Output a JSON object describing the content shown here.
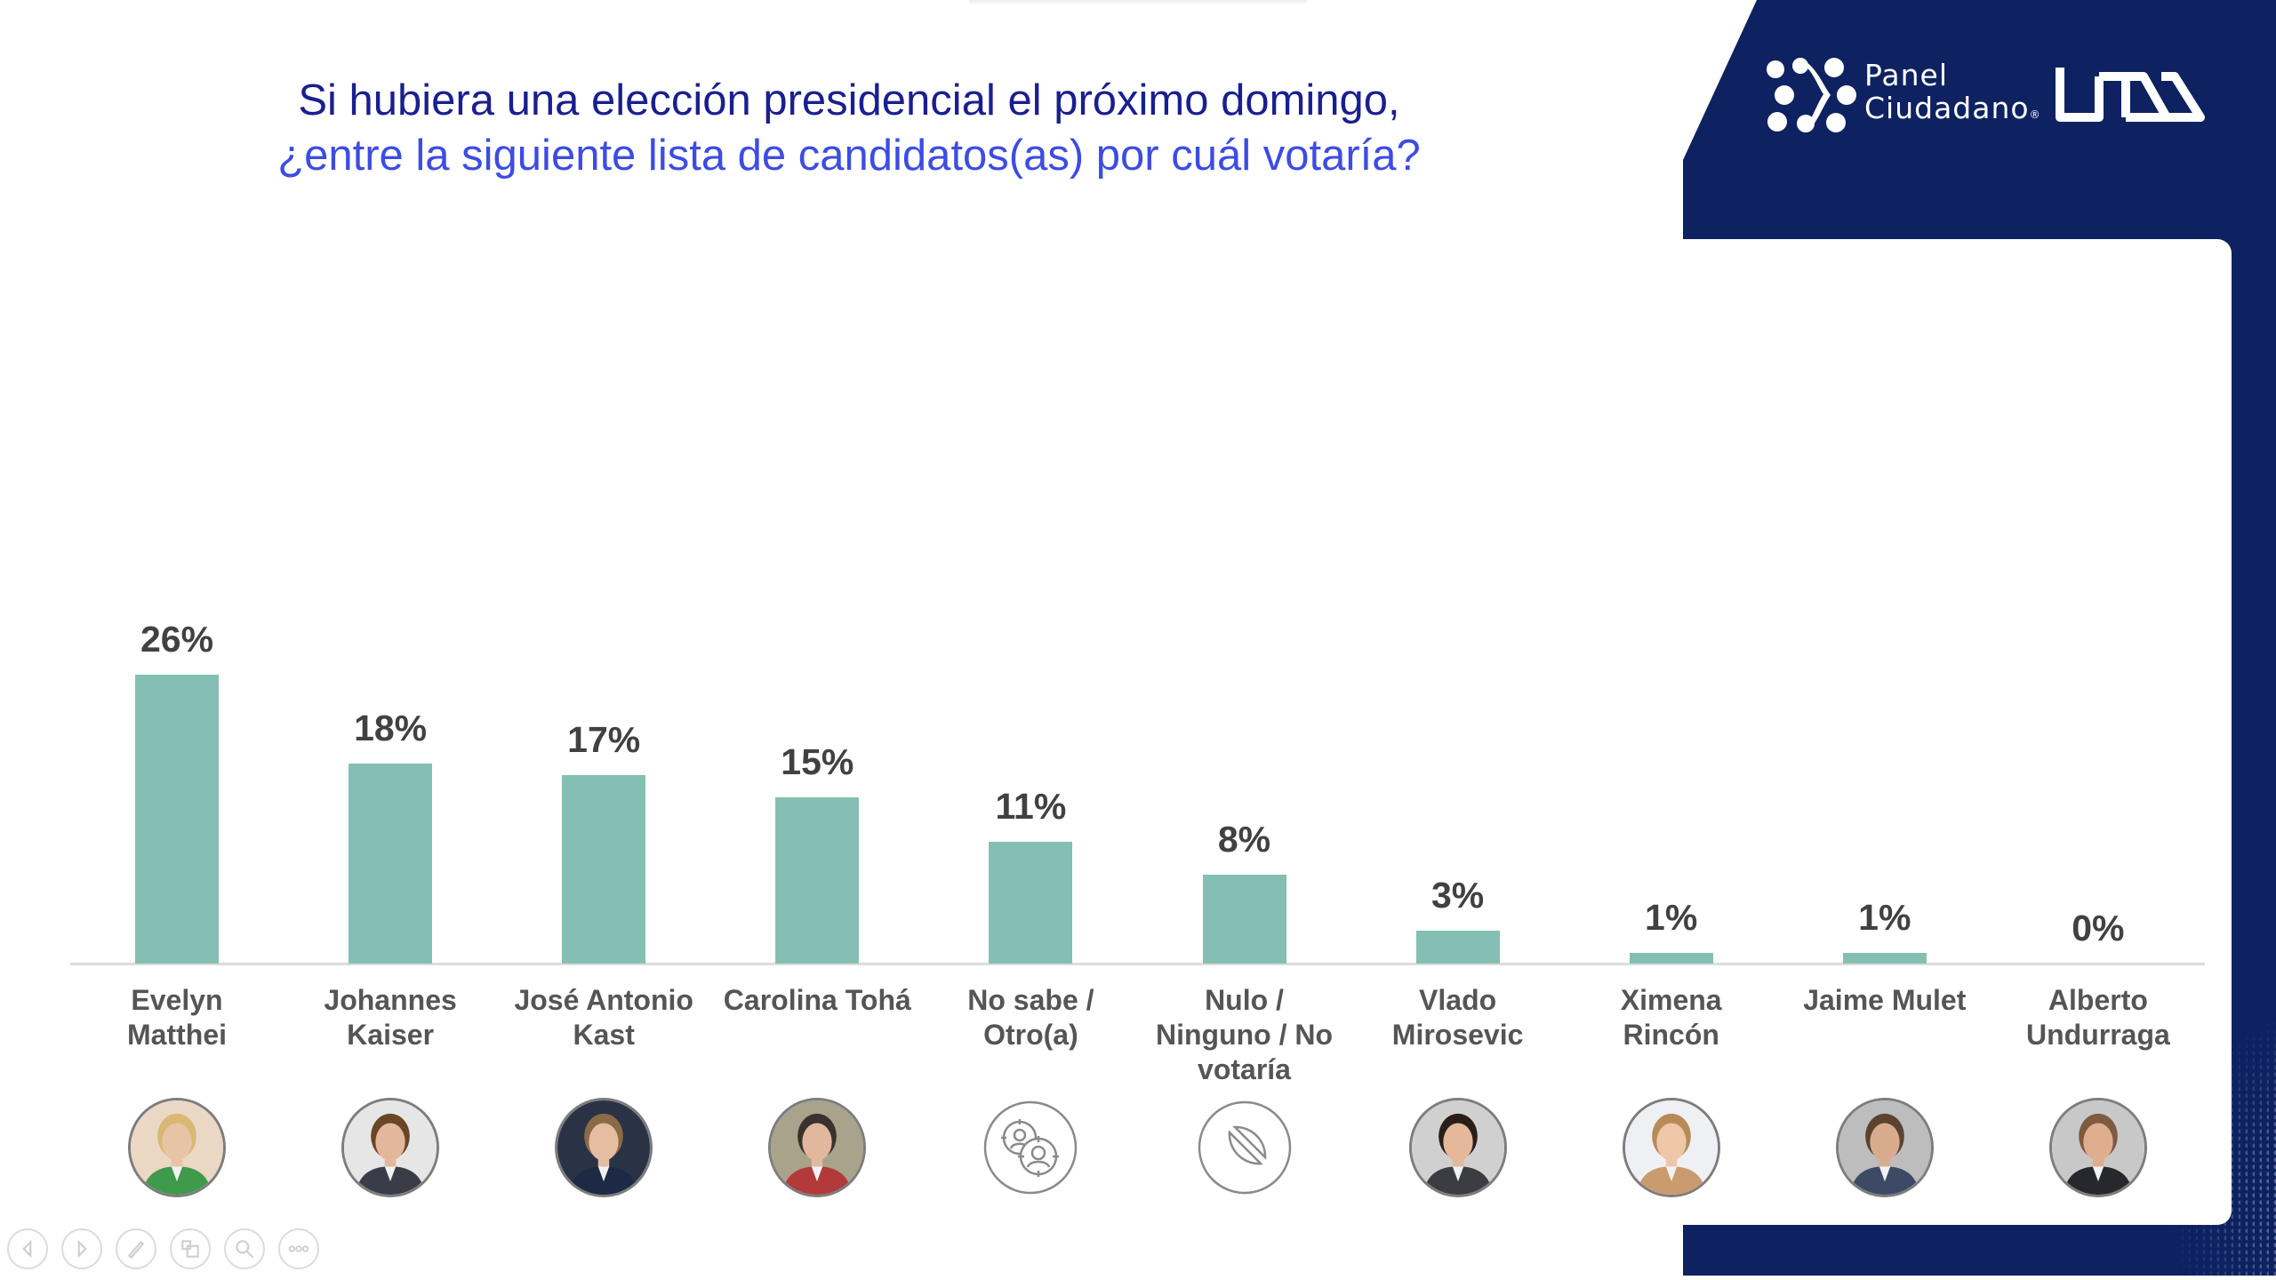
{
  "title": {
    "line1": "Si hubiera una elección presidencial el próximo domingo,",
    "line2": "¿entre la siguiente lista de candidatos(as) por cuál votaría?"
  },
  "brand": {
    "logo_line1": "Panel",
    "logo_line2": "Ciudadano",
    "registered": "®",
    "university_logo": "UDD",
    "navy": "#0e2261"
  },
  "colors": {
    "bar": "#85bfb4",
    "title_primary": "#1a1f8f",
    "title_secondary": "#3d4ce3",
    "value_label": "#414141",
    "category_label": "#555555"
  },
  "chart_data": {
    "type": "bar",
    "title": "Si hubiera una elección presidencial el próximo domingo, ¿entre la siguiente lista de candidatos(as) por cuál votaría?",
    "xlabel": "",
    "ylabel": "",
    "ylim": [
      0,
      26
    ],
    "grid": false,
    "legend": "none",
    "unit": "%",
    "categories": [
      "Evelyn Matthei",
      "Johannes Kaiser",
      "José Antonio Kast",
      "Carolina Tohá",
      "No sabe / Otro(a)",
      "Nulo / Ninguno / No votaría",
      "Vlado Mirosevic",
      "Ximena Rincón",
      "Jaime Mulet",
      "Alberto Undurraga"
    ],
    "values": [
      26,
      18,
      17,
      15,
      11,
      8,
      3,
      1,
      1,
      0
    ],
    "value_labels": [
      "26%",
      "18%",
      "17%",
      "15%",
      "11%",
      "8%",
      "3%",
      "1%",
      "1%",
      "0%"
    ],
    "category_lines": [
      [
        "Evelyn",
        "Matthei"
      ],
      [
        "Johannes",
        "Kaiser"
      ],
      [
        "José Antonio",
        "Kast"
      ],
      [
        "Carolina Tohá"
      ],
      [
        "No sabe /",
        "Otro(a)"
      ],
      [
        "Nulo /",
        "Ninguno / No",
        "votaría"
      ],
      [
        "Vlado",
        "Mirosevic"
      ],
      [
        "Ximena",
        "Rincón"
      ],
      [
        "Jaime Mulet"
      ],
      [
        "Alberto",
        "Undurraga"
      ]
    ],
    "pictograms": [
      {
        "kind": "photo",
        "name": "evelyn-matthei",
        "skin": "#e8c4a6",
        "hair": "#d9b874",
        "bg": "#ead7c4",
        "clothes": "#3f9a4c"
      },
      {
        "kind": "photo",
        "name": "johannes-kaiser",
        "skin": "#e2b79a",
        "hair": "#6b4626",
        "bg": "#e6e6e6",
        "clothes": "#3a3d48"
      },
      {
        "kind": "photo",
        "name": "jose-antonio-kast",
        "skin": "#e6bda0",
        "hair": "#8b6a48",
        "bg": "#2a3346",
        "clothes": "#1d2a45"
      },
      {
        "kind": "photo",
        "name": "carolina-toha",
        "skin": "#e1b89d",
        "hair": "#3b3131",
        "bg": "#a8a38a",
        "clothes": "#b23a3a"
      },
      {
        "kind": "icon",
        "name": "undecided-people-icon"
      },
      {
        "kind": "icon",
        "name": "prohibited-icon"
      },
      {
        "kind": "photo",
        "name": "vlado-mirosevic",
        "skin": "#e4b899",
        "hair": "#2a1e18",
        "bg": "#d0d0d0",
        "clothes": "#3b3d43"
      },
      {
        "kind": "photo",
        "name": "ximena-rincon",
        "skin": "#eec6a8",
        "hair": "#b98a58",
        "bg": "#eef0f4",
        "clothes": "#c99b6e"
      },
      {
        "kind": "photo",
        "name": "jaime-mulet",
        "skin": "#d9ab8e",
        "hair": "#5a4330",
        "bg": "#bdbdbd",
        "clothes": "#3d4a66"
      },
      {
        "kind": "photo",
        "name": "alberto-undurraga",
        "skin": "#dfae8f",
        "hair": "#7d5a40",
        "bg": "#c8c8c8",
        "clothes": "#27282d"
      }
    ]
  },
  "controls": [
    {
      "name": "previous-slide-button",
      "icon": "arrow-left-icon"
    },
    {
      "name": "next-slide-button",
      "icon": "arrow-right-icon"
    },
    {
      "name": "pen-tool-button",
      "icon": "pen-icon"
    },
    {
      "name": "slide-overview-button",
      "icon": "slides-icon"
    },
    {
      "name": "zoom-button",
      "icon": "magnifier-icon"
    },
    {
      "name": "more-options-button",
      "icon": "more-icon"
    }
  ]
}
